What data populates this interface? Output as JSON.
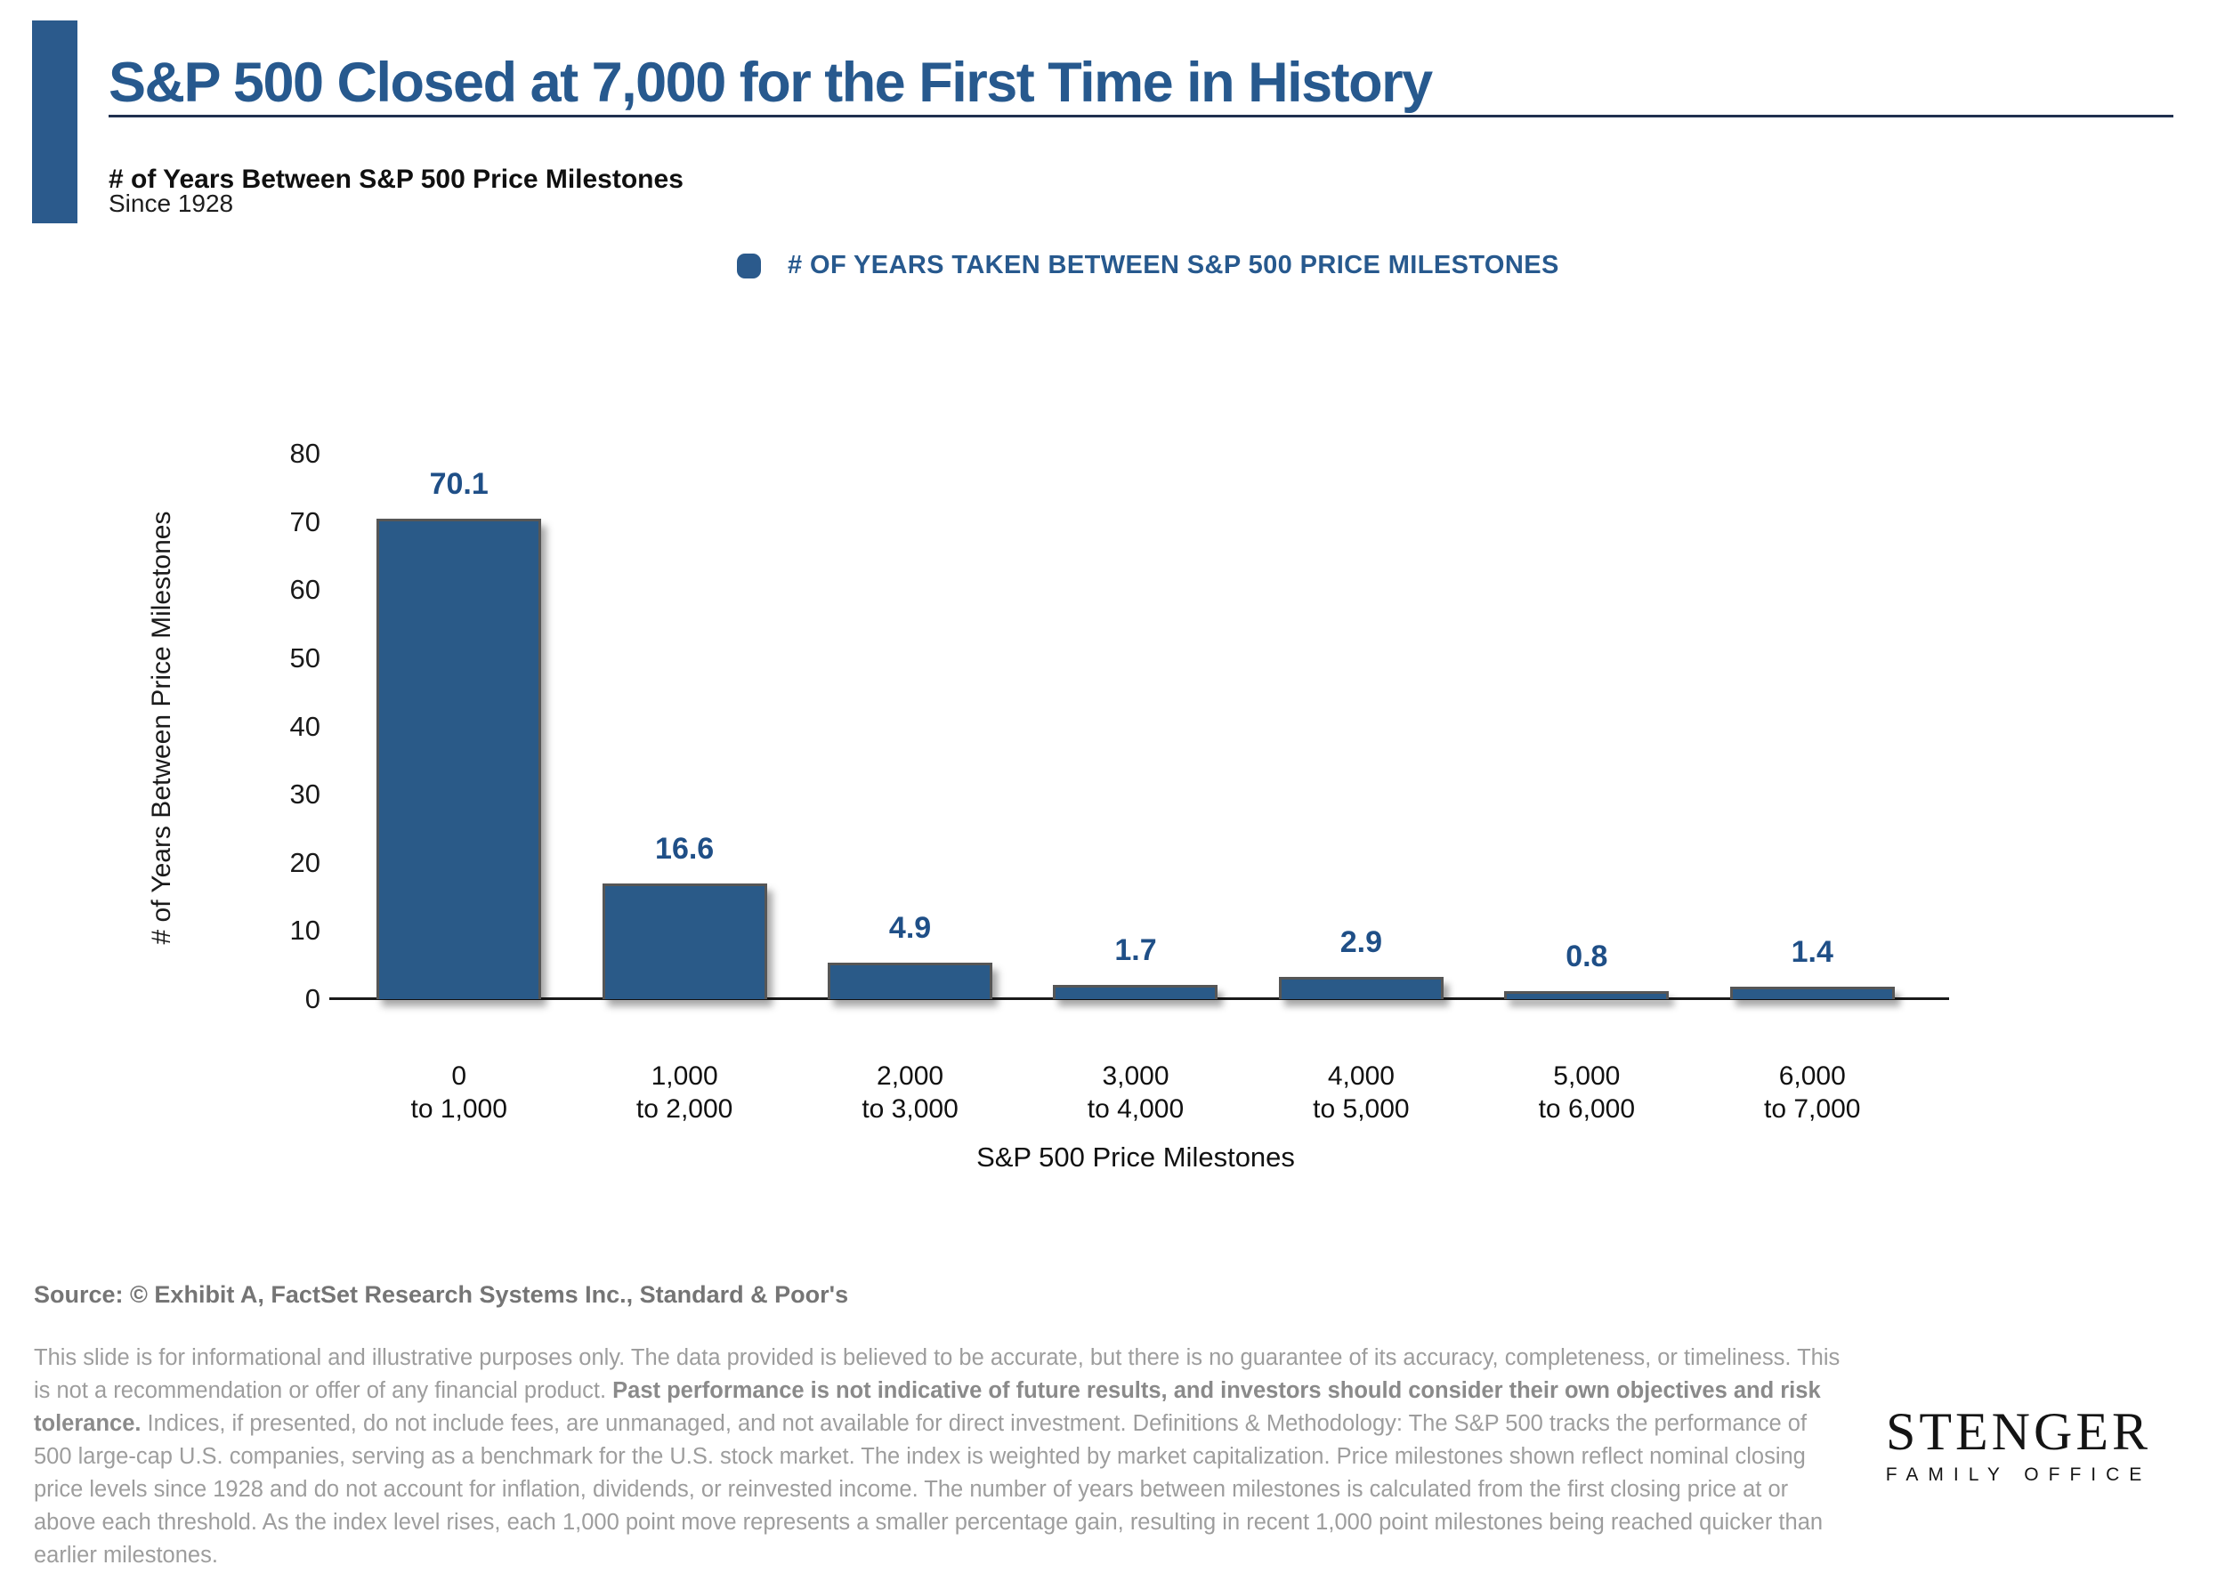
{
  "colors": {
    "accent_blue": "#2B5A8C",
    "bar_blue": "#2A5A88",
    "value_label_blue": "#1F4F87",
    "rule_navy": "#20304E"
  },
  "header": {
    "title": "S&P 500 Closed at 7,000 for the First Time in History",
    "subtitle": "# of Years Between S&P 500 Price Milestones",
    "period": "Since 1928"
  },
  "legend": {
    "marker_icon": "rounded-square-swatch",
    "label": "# OF YEARS TAKEN BETWEEN S&P 500 PRICE MILESTONES"
  },
  "chart_data": {
    "type": "bar",
    "title": "# of Years Between S&P 500 Price Milestones",
    "categories": [
      "0\nto 1,000",
      "1,000\nto 2,000",
      "2,000\nto 3,000",
      "3,000\nto 4,000",
      "4,000\nto 5,000",
      "5,000\nto 6,000",
      "6,000\nto 7,000"
    ],
    "values": [
      70.1,
      16.6,
      4.9,
      1.7,
      2.9,
      0.8,
      1.4
    ],
    "value_labels": [
      "70.1",
      "16.6",
      "4.9",
      "1.7",
      "2.9",
      "0.8",
      "1.4"
    ],
    "series_name": "# OF YEARS TAKEN BETWEEN S&P 500 PRICE MILESTONES",
    "xlabel": "S&P 500 Price Milestones",
    "ylabel": "# of Years Between Price Milestones",
    "ylim": [
      0,
      80
    ],
    "yticks": [
      0,
      10,
      20,
      30,
      40,
      50,
      60,
      70,
      80
    ],
    "grid": false,
    "legend_position": "top",
    "bar_color": "#2A5A88"
  },
  "footer": {
    "source": "Source: © Exhibit A, FactSet Research Systems Inc., Standard & Poor's",
    "disclaimer_segments": [
      {
        "bold": false,
        "text": "This slide is for informational and illustrative purposes only. The data provided is believed to be accurate, but there is no guarantee of its accuracy, completeness, or timeliness. This is not a recommendation or offer of any financial product. "
      },
      {
        "bold": true,
        "text": "Past performance is not indicative of future results, and investors should consider their own objectives and risk tolerance."
      },
      {
        "bold": false,
        "text": " Indices, if presented, do not include fees, are unmanaged, and not available for direct investment. Definitions & Methodology: The S&P 500 tracks the performance of 500 large-cap U.S. companies, serving as a benchmark for the U.S. stock market. The index is weighted by market capitalization. Price milestones shown reflect nominal closing price levels since 1928 and do not account for inflation, dividends, or reinvested income. The number of years between milestones is calculated from the first closing price at or above each threshold. As the index level rises, each 1,000 point move represents a smaller percentage gain, resulting in recent 1,000 point milestones being reached quicker than earlier milestones."
      }
    ],
    "logo": {
      "name": "STENGER",
      "tagline": "FAMILY OFFICE"
    }
  }
}
